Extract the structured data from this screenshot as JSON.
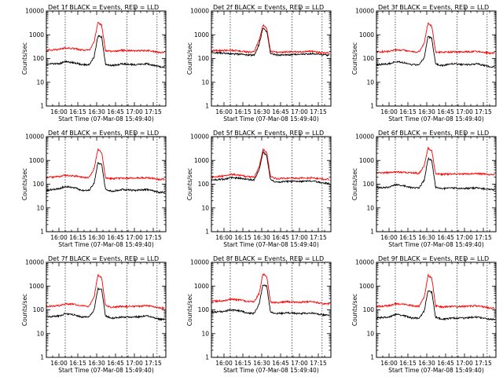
{
  "figure": {
    "xtick_labels": [
      "16:00",
      "16:15",
      "16:30",
      "16:45",
      "17:00",
      "17:15"
    ],
    "ytick_labels": [
      "1",
      "10",
      "100",
      "1000",
      "10000"
    ],
    "colors": {
      "events": "#000000",
      "lld": "#ff0000"
    }
  },
  "chart_data": [
    {
      "type": "line",
      "title": "Det 1f BLACK = Events, RED = LLD",
      "xlabel": "Start Time (07-Mar-08 15:49:40)",
      "ylabel": "Counts/sec",
      "ylim": [
        1,
        10000
      ],
      "yscale": "log",
      "xlim": [
        "15:50",
        "17:25"
      ],
      "vlines": [
        "16:05",
        "16:54",
        "17:18"
      ],
      "series": [
        {
          "name": "Events",
          "color": "#000000",
          "x": [
            "15:50",
            "16:00",
            "16:05",
            "16:13",
            "16:18",
            "16:24",
            "16:28",
            "16:31",
            "16:34",
            "16:37",
            "16:42",
            "16:50",
            "17:00",
            "17:10",
            "17:20",
            "17:24"
          ],
          "y": [
            60,
            60,
            75,
            65,
            55,
            55,
            120,
            900,
            800,
            60,
            50,
            60,
            55,
            60,
            45,
            45
          ]
        },
        {
          "name": "LLD",
          "color": "#ff0000",
          "x": [
            "15:50",
            "16:00",
            "16:05",
            "16:13",
            "16:18",
            "16:24",
            "16:28",
            "16:31",
            "16:34",
            "16:37",
            "16:42",
            "16:50",
            "17:00",
            "17:10",
            "17:20",
            "17:24"
          ],
          "y": [
            230,
            240,
            280,
            260,
            230,
            220,
            500,
            3300,
            2500,
            210,
            200,
            220,
            210,
            220,
            180,
            180
          ]
        }
      ]
    },
    {
      "type": "line",
      "title": "Det 2f BLACK = Events, RED = LLD",
      "xlabel": "Start Time (07-Mar-08 15:49:40)",
      "ylabel": "Counts/sec",
      "ylim": [
        1,
        10000
      ],
      "yscale": "log",
      "xlim": [
        "15:50",
        "17:25"
      ],
      "vlines": [
        "16:05",
        "16:54",
        "17:18"
      ],
      "series": [
        {
          "name": "Events",
          "color": "#000000",
          "x": [
            "15:50",
            "16:00",
            "16:05",
            "16:13",
            "16:18",
            "16:24",
            "16:28",
            "16:31",
            "16:34",
            "16:37",
            "16:42",
            "16:50",
            "17:00",
            "17:10",
            "17:20",
            "17:24"
          ],
          "y": [
            180,
            170,
            160,
            150,
            140,
            140,
            400,
            2000,
            1400,
            160,
            140,
            140,
            150,
            160,
            140,
            140
          ]
        },
        {
          "name": "LLD",
          "color": "#ff0000",
          "x": [
            "15:50",
            "16:00",
            "16:05",
            "16:13",
            "16:18",
            "16:24",
            "16:28",
            "16:31",
            "16:34",
            "16:37",
            "16:42",
            "16:50",
            "17:00",
            "17:10",
            "17:20",
            "17:24"
          ],
          "y": [
            220,
            220,
            230,
            200,
            190,
            190,
            600,
            2600,
            1900,
            200,
            180,
            190,
            190,
            200,
            170,
            170
          ]
        }
      ]
    },
    {
      "type": "line",
      "title": "Det 3f BLACK = Events, RED = LLD",
      "xlabel": "Start Time (07-Mar-08 15:49:40)",
      "ylabel": "Counts/sec",
      "ylim": [
        1,
        10000
      ],
      "yscale": "log",
      "xlim": [
        "15:50",
        "17:25"
      ],
      "vlines": [
        "16:05",
        "16:54",
        "17:18"
      ],
      "series": [
        {
          "name": "Events",
          "color": "#000000",
          "x": [
            "15:50",
            "16:00",
            "16:05",
            "16:13",
            "16:18",
            "16:24",
            "16:28",
            "16:31",
            "16:34",
            "16:37",
            "16:42",
            "16:50",
            "17:00",
            "17:10",
            "17:20",
            "17:24"
          ],
          "y": [
            55,
            60,
            75,
            65,
            55,
            55,
            110,
            850,
            700,
            60,
            50,
            60,
            55,
            60,
            45,
            45
          ]
        },
        {
          "name": "LLD",
          "color": "#ff0000",
          "x": [
            "15:50",
            "16:00",
            "16:05",
            "16:13",
            "16:18",
            "16:24",
            "16:28",
            "16:31",
            "16:34",
            "16:37",
            "16:42",
            "16:50",
            "17:00",
            "17:10",
            "17:20",
            "17:24"
          ],
          "y": [
            190,
            200,
            230,
            220,
            200,
            190,
            450,
            3100,
            2300,
            190,
            180,
            190,
            190,
            200,
            170,
            170
          ]
        }
      ]
    },
    {
      "type": "line",
      "title": "Det 4f BLACK = Events, RED = LLD",
      "xlabel": "Start Time (07-Mar-08 15:49:40)",
      "ylabel": "Counts/sec",
      "ylim": [
        1,
        10000
      ],
      "yscale": "log",
      "xlim": [
        "15:50",
        "17:25"
      ],
      "vlines": [
        "16:05",
        "16:54",
        "17:18"
      ],
      "series": [
        {
          "name": "Events",
          "color": "#000000",
          "x": [
            "15:50",
            "16:00",
            "16:05",
            "16:13",
            "16:18",
            "16:24",
            "16:28",
            "16:31",
            "16:34",
            "16:37",
            "16:42",
            "16:50",
            "17:00",
            "17:10",
            "17:20",
            "17:24"
          ],
          "y": [
            55,
            65,
            80,
            70,
            55,
            55,
            110,
            800,
            700,
            60,
            50,
            60,
            55,
            60,
            45,
            45
          ]
        },
        {
          "name": "LLD",
          "color": "#ff0000",
          "x": [
            "15:50",
            "16:00",
            "16:05",
            "16:13",
            "16:18",
            "16:24",
            "16:28",
            "16:31",
            "16:34",
            "16:37",
            "16:42",
            "16:50",
            "17:00",
            "17:10",
            "17:20",
            "17:24"
          ],
          "y": [
            190,
            210,
            240,
            220,
            200,
            190,
            450,
            3000,
            2200,
            180,
            170,
            180,
            180,
            190,
            160,
            160
          ]
        }
      ]
    },
    {
      "type": "line",
      "title": "Det 5f BLACK = Events, RED = LLD",
      "xlabel": "Start Time (07-Mar-08 15:49:40)",
      "ylabel": "Counts/sec",
      "ylim": [
        1,
        10000
      ],
      "yscale": "log",
      "xlim": [
        "15:50",
        "17:25"
      ],
      "vlines": [
        "16:05",
        "16:54",
        "17:18"
      ],
      "series": [
        {
          "name": "Events",
          "color": "#000000",
          "x": [
            "15:50",
            "16:00",
            "16:05",
            "16:13",
            "16:18",
            "16:24",
            "16:28",
            "16:31",
            "16:34",
            "16:37",
            "16:42",
            "16:50",
            "17:00",
            "17:10",
            "17:20",
            "17:24"
          ],
          "y": [
            150,
            160,
            190,
            180,
            160,
            150,
            400,
            2300,
            1600,
            150,
            120,
            130,
            130,
            140,
            110,
            110
          ]
        },
        {
          "name": "LLD",
          "color": "#ff0000",
          "x": [
            "15:50",
            "16:00",
            "16:05",
            "16:13",
            "16:18",
            "16:24",
            "16:28",
            "16:31",
            "16:34",
            "16:37",
            "16:42",
            "16:50",
            "17:00",
            "17:10",
            "17:20",
            "17:24"
          ],
          "y": [
            200,
            220,
            260,
            240,
            210,
            200,
            550,
            2900,
            2200,
            200,
            170,
            180,
            180,
            190,
            160,
            160
          ]
        }
      ]
    },
    {
      "type": "line",
      "title": "Det 6f BLACK = Events, RED = LLD",
      "xlabel": "Start Time (07-Mar-08 15:49:40)",
      "ylabel": "Counts/sec",
      "ylim": [
        1,
        10000
      ],
      "yscale": "log",
      "xlim": [
        "15:50",
        "17:25"
      ],
      "vlines": [
        "16:05",
        "16:54",
        "17:18"
      ],
      "series": [
        {
          "name": "Events",
          "color": "#000000",
          "x": [
            "15:50",
            "16:00",
            "16:05",
            "16:13",
            "16:18",
            "16:24",
            "16:28",
            "16:31",
            "16:34",
            "16:37",
            "16:42",
            "16:50",
            "17:00",
            "17:10",
            "17:20",
            "17:24"
          ],
          "y": [
            70,
            75,
            95,
            85,
            70,
            70,
            150,
            1200,
            1000,
            75,
            65,
            70,
            65,
            70,
            60,
            60
          ]
        },
        {
          "name": "LLD",
          "color": "#ff0000",
          "x": [
            "15:50",
            "16:00",
            "16:05",
            "16:13",
            "16:18",
            "16:24",
            "16:28",
            "16:31",
            "16:34",
            "16:37",
            "16:42",
            "16:50",
            "17:00",
            "17:10",
            "17:20",
            "17:24"
          ],
          "y": [
            300,
            310,
            330,
            310,
            300,
            290,
            600,
            3300,
            2500,
            280,
            260,
            270,
            270,
            280,
            260,
            260
          ]
        }
      ]
    },
    {
      "type": "line",
      "title": "Det 7f BLACK = Events, RED = LLD",
      "xlabel": "Start Time (07-Mar-08 15:49:40)",
      "ylabel": "Counts/sec",
      "ylim": [
        1,
        10000
      ],
      "yscale": "log",
      "xlim": [
        "15:50",
        "17:25"
      ],
      "vlines": [
        "16:05",
        "16:54",
        "17:18"
      ],
      "series": [
        {
          "name": "Events",
          "color": "#000000",
          "x": [
            "15:50",
            "16:00",
            "16:05",
            "16:13",
            "16:18",
            "16:24",
            "16:28",
            "16:31",
            "16:34",
            "16:37",
            "16:42",
            "16:50",
            "17:00",
            "17:10",
            "17:20",
            "17:24"
          ],
          "y": [
            50,
            55,
            70,
            60,
            50,
            50,
            100,
            800,
            700,
            55,
            45,
            50,
            50,
            55,
            40,
            40
          ]
        },
        {
          "name": "LLD",
          "color": "#ff0000",
          "x": [
            "15:50",
            "16:00",
            "16:05",
            "16:13",
            "16:18",
            "16:24",
            "16:28",
            "16:31",
            "16:34",
            "16:37",
            "16:42",
            "16:50",
            "17:00",
            "17:10",
            "17:20",
            "17:24"
          ],
          "y": [
            140,
            150,
            180,
            170,
            150,
            140,
            350,
            3000,
            2200,
            150,
            130,
            140,
            140,
            150,
            120,
            120
          ]
        }
      ]
    },
    {
      "type": "line",
      "title": "Det 8f BLACK = Events, RED = LLD",
      "xlabel": "Start Time (07-Mar-08 15:49:40)",
      "ylabel": "Counts/sec",
      "ylim": [
        1,
        10000
      ],
      "yscale": "log",
      "xlim": [
        "15:50",
        "17:25"
      ],
      "vlines": [
        "16:05",
        "16:54",
        "17:18"
      ],
      "series": [
        {
          "name": "Events",
          "color": "#000000",
          "x": [
            "15:50",
            "16:00",
            "16:05",
            "16:13",
            "16:18",
            "16:24",
            "16:28",
            "16:31",
            "16:34",
            "16:37",
            "16:42",
            "16:50",
            "17:00",
            "17:10",
            "17:20",
            "17:24"
          ],
          "y": [
            80,
            85,
            100,
            90,
            75,
            70,
            180,
            1200,
            1000,
            80,
            70,
            75,
            70,
            75,
            60,
            60
          ]
        },
        {
          "name": "LLD",
          "color": "#ff0000",
          "x": [
            "15:50",
            "16:00",
            "16:05",
            "16:13",
            "16:18",
            "16:24",
            "16:28",
            "16:31",
            "16:34",
            "16:37",
            "16:42",
            "16:50",
            "17:00",
            "17:10",
            "17:20",
            "17:24"
          ],
          "y": [
            230,
            240,
            280,
            260,
            230,
            220,
            500,
            3300,
            2500,
            210,
            200,
            220,
            210,
            220,
            180,
            180
          ]
        }
      ]
    },
    {
      "type": "line",
      "title": "Det 9f BLACK = Events, RED = LLD",
      "xlabel": "Start Time (07-Mar-08 15:49:40)",
      "ylabel": "Counts/sec",
      "ylim": [
        1,
        10000
      ],
      "yscale": "log",
      "xlim": [
        "15:50",
        "17:25"
      ],
      "vlines": [
        "16:05",
        "16:54",
        "17:18"
      ],
      "series": [
        {
          "name": "Events",
          "color": "#000000",
          "x": [
            "15:50",
            "16:00",
            "16:05",
            "16:13",
            "16:18",
            "16:24",
            "16:28",
            "16:31",
            "16:34",
            "16:37",
            "16:42",
            "16:50",
            "17:00",
            "17:10",
            "17:20",
            "17:24"
          ],
          "y": [
            45,
            50,
            65,
            55,
            45,
            45,
            90,
            650,
            550,
            50,
            40,
            45,
            45,
            50,
            40,
            40
          ]
        },
        {
          "name": "LLD",
          "color": "#ff0000",
          "x": [
            "15:50",
            "16:00",
            "16:05",
            "16:13",
            "16:18",
            "16:24",
            "16:28",
            "16:31",
            "16:34",
            "16:37",
            "16:42",
            "16:50",
            "17:00",
            "17:10",
            "17:20",
            "17:24"
          ],
          "y": [
            140,
            150,
            180,
            170,
            150,
            140,
            350,
            2900,
            2200,
            150,
            130,
            140,
            140,
            150,
            120,
            120
          ]
        }
      ]
    }
  ]
}
